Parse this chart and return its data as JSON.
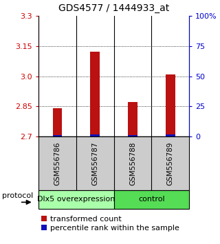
{
  "title": "GDS4577 / 1444933_at",
  "samples": [
    "GSM556786",
    "GSM556787",
    "GSM556788",
    "GSM556789"
  ],
  "red_values": [
    2.84,
    3.122,
    2.872,
    3.01
  ],
  "blue_values": [
    2.708,
    2.712,
    2.707,
    2.712
  ],
  "y_min": 2.7,
  "y_max": 3.3,
  "y_ticks": [
    2.7,
    2.85,
    3.0,
    3.15,
    3.3
  ],
  "y_right_ticks": [
    0,
    25,
    50,
    75,
    100
  ],
  "y_right_labels": [
    "0",
    "25",
    "50",
    "75",
    "100%"
  ],
  "groups": [
    {
      "label": "Dlx5 overexpression",
      "samples": [
        0,
        1
      ],
      "color": "#aaffaa"
    },
    {
      "label": "control",
      "samples": [
        2,
        3
      ],
      "color": "#55dd55"
    }
  ],
  "bar_width": 0.25,
  "red_color": "#bb1111",
  "blue_color": "#1111bb",
  "left_tick_color": "#cc0000",
  "right_tick_color": "#0000cc",
  "title_fontsize": 10,
  "legend_fontsize": 8,
  "axis_fontsize": 8,
  "sample_label_fontsize": 7.5,
  "group_label_fontsize": 8,
  "bg_color": "#cccccc",
  "plot_bg_color": "#ffffff"
}
